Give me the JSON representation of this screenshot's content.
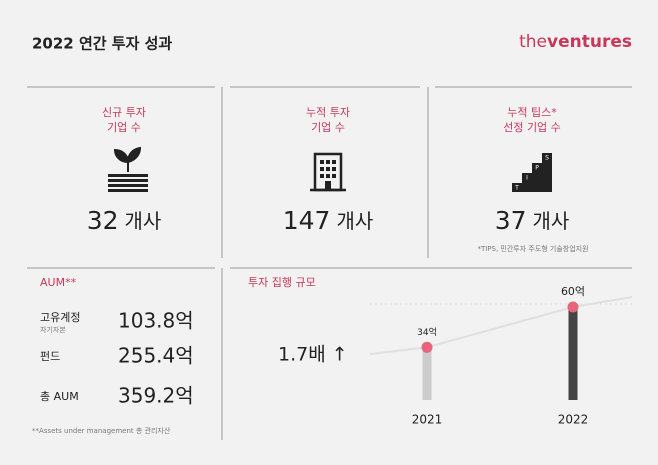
{
  "header": {
    "title": "2022 연간 투자 성과",
    "logo_light": "the",
    "logo_bold": "ventures"
  },
  "cards": [
    {
      "label_lines": [
        "신규 투자",
        "기업 수"
      ],
      "value": "32",
      "unit": "개사"
    },
    {
      "label_lines": [
        "누적 투자",
        "기업 수"
      ],
      "value": "147",
      "unit": "개사"
    },
    {
      "label_lines": [
        "누적 팁스*",
        "선정 기업 수"
      ],
      "value": "37",
      "unit": "개사",
      "icon_letters": [
        "T",
        "I",
        "P",
        "S"
      ],
      "footnote": "*TIPS, 민간투자 주도형 기술창업지원"
    }
  ],
  "aum": {
    "title": "AUM**",
    "rows": [
      {
        "label": "고유계정",
        "sublabel": "자기자본",
        "value": "103.8억"
      },
      {
        "label": "펀드",
        "value": "255.4억"
      },
      {
        "label": "총 AUM",
        "value": "359.2억"
      }
    ],
    "footnote": "**Assets under management 총 관리자산"
  },
  "investment": {
    "title": "투자 집행 규모",
    "growth": "1.7배 ↑",
    "categories": [
      "2021",
      "2022"
    ],
    "values": [
      34,
      60
    ],
    "value_labels": [
      "34억",
      "60억"
    ]
  }
}
